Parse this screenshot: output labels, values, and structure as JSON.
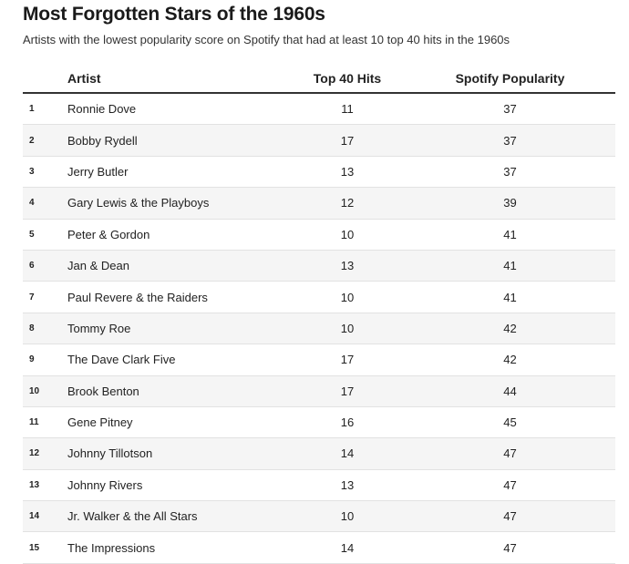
{
  "chart_data": {
    "type": "table",
    "title": "Most Forgotten Stars of the 1960s",
    "subtitle": "Artists with the lowest popularity score on Spotify that had at least 10 top 40 hits in the 1960s",
    "columns": [
      "",
      "Artist",
      "Top 40 Hits",
      "Spotify Popularity"
    ],
    "rows": [
      {
        "rank": "1",
        "artist": "Ronnie Dove",
        "hits": "11",
        "popularity": "37"
      },
      {
        "rank": "2",
        "artist": "Bobby Rydell",
        "hits": "17",
        "popularity": "37"
      },
      {
        "rank": "3",
        "artist": "Jerry Butler",
        "hits": "13",
        "popularity": "37"
      },
      {
        "rank": "4",
        "artist": "Gary Lewis & the Playboys",
        "hits": "12",
        "popularity": "39"
      },
      {
        "rank": "5",
        "artist": "Peter & Gordon",
        "hits": "10",
        "popularity": "41"
      },
      {
        "rank": "6",
        "artist": "Jan & Dean",
        "hits": "13",
        "popularity": "41"
      },
      {
        "rank": "7",
        "artist": "Paul Revere & the Raiders",
        "hits": "10",
        "popularity": "41"
      },
      {
        "rank": "8",
        "artist": "Tommy Roe",
        "hits": "10",
        "popularity": "42"
      },
      {
        "rank": "9",
        "artist": "The Dave Clark Five",
        "hits": "17",
        "popularity": "42"
      },
      {
        "rank": "10",
        "artist": "Brook Benton",
        "hits": "17",
        "popularity": "44"
      },
      {
        "rank": "11",
        "artist": "Gene Pitney",
        "hits": "16",
        "popularity": "45"
      },
      {
        "rank": "12",
        "artist": "Johnny Tillotson",
        "hits": "14",
        "popularity": "47"
      },
      {
        "rank": "13",
        "artist": "Johnny Rivers",
        "hits": "13",
        "popularity": "47"
      },
      {
        "rank": "14",
        "artist": "Jr. Walker & the All Stars",
        "hits": "10",
        "popularity": "47"
      },
      {
        "rank": "15",
        "artist": "The Impressions",
        "hits": "14",
        "popularity": "47"
      }
    ]
  }
}
